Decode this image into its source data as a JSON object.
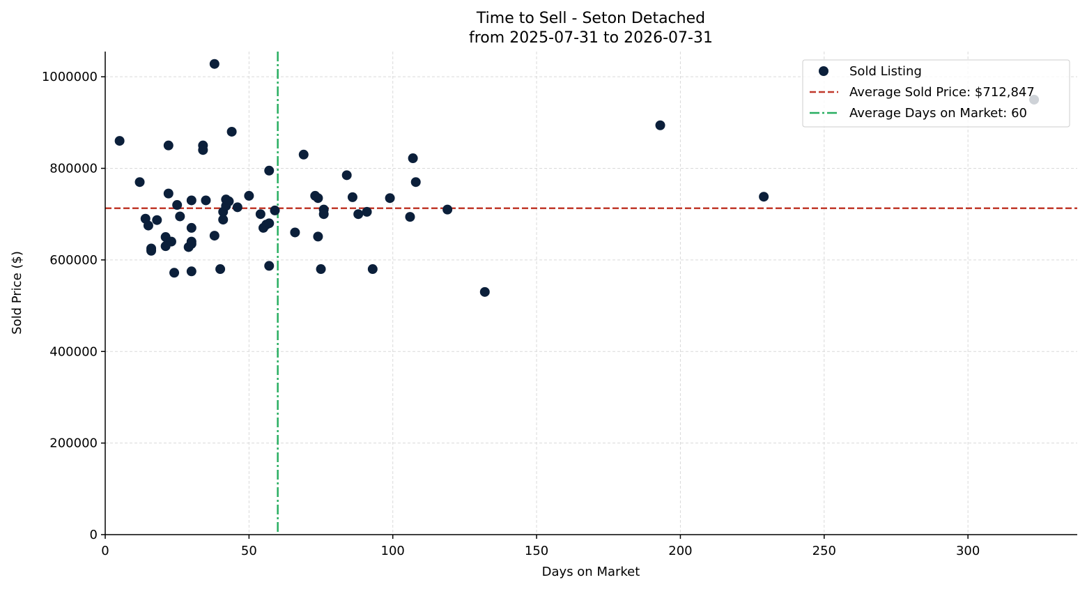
{
  "chart_data": {
    "type": "scatter",
    "title": "Time to Sell - Seton Detached",
    "subtitle": "from 2025-07-31 to 2026-07-31",
    "xlabel": "Days on Market",
    "ylabel": "Sold Price ($)",
    "xlim": [
      0,
      338
    ],
    "ylim": [
      0,
      1055000
    ],
    "xticks": [
      0,
      50,
      100,
      150,
      200,
      250,
      300
    ],
    "yticks": [
      0,
      200000,
      400000,
      600000,
      800000,
      1000000
    ],
    "grid": true,
    "legend_position": "top-right",
    "colors": {
      "points": "#0b1f3a",
      "avg_price": "#c0392b",
      "avg_days": "#27ae60"
    },
    "series": [
      {
        "name": "Sold Listing",
        "points": [
          [
            5,
            860000
          ],
          [
            12,
            770000
          ],
          [
            14,
            690000
          ],
          [
            15,
            675000
          ],
          [
            16,
            625000
          ],
          [
            16,
            620000
          ],
          [
            18,
            687000
          ],
          [
            21,
            650000
          ],
          [
            21,
            630000
          ],
          [
            22,
            850000
          ],
          [
            22,
            745000
          ],
          [
            23,
            640000
          ],
          [
            24,
            572000
          ],
          [
            25,
            720000
          ],
          [
            26,
            695000
          ],
          [
            29,
            628000
          ],
          [
            30,
            730000
          ],
          [
            30,
            670000
          ],
          [
            30,
            640000
          ],
          [
            30,
            635000
          ],
          [
            30,
            575000
          ],
          [
            34,
            850000
          ],
          [
            34,
            840000
          ],
          [
            35,
            730000
          ],
          [
            38,
            1028000
          ],
          [
            38,
            653000
          ],
          [
            40,
            580000
          ],
          [
            41,
            705000
          ],
          [
            41,
            688000
          ],
          [
            42,
            732000
          ],
          [
            42,
            718000
          ],
          [
            43,
            728000
          ],
          [
            44,
            880000
          ],
          [
            46,
            715000
          ],
          [
            50,
            740000
          ],
          [
            54,
            700000
          ],
          [
            55,
            670000
          ],
          [
            56,
            677000
          ],
          [
            57,
            795000
          ],
          [
            57,
            680000
          ],
          [
            57,
            587000
          ],
          [
            59,
            708000
          ],
          [
            66,
            660000
          ],
          [
            69,
            830000
          ],
          [
            73,
            740000
          ],
          [
            74,
            735000
          ],
          [
            74,
            651000
          ],
          [
            75,
            580000
          ],
          [
            76,
            710000
          ],
          [
            76,
            700000
          ],
          [
            84,
            785000
          ],
          [
            86,
            737000
          ],
          [
            88,
            700000
          ],
          [
            91,
            705000
          ],
          [
            93,
            580000
          ],
          [
            99,
            735000
          ],
          [
            106,
            694000
          ],
          [
            107,
            822000
          ],
          [
            108,
            770000
          ],
          [
            119,
            710000
          ],
          [
            132,
            530000
          ],
          [
            193,
            894000
          ],
          [
            229,
            738000
          ],
          [
            323,
            950000
          ]
        ]
      }
    ],
    "reference_lines": {
      "avg_price": {
        "label": "Average Sold Price: $712,847",
        "value": 712847
      },
      "avg_days": {
        "label": "Average Days on Market: 60",
        "value": 60
      }
    }
  }
}
